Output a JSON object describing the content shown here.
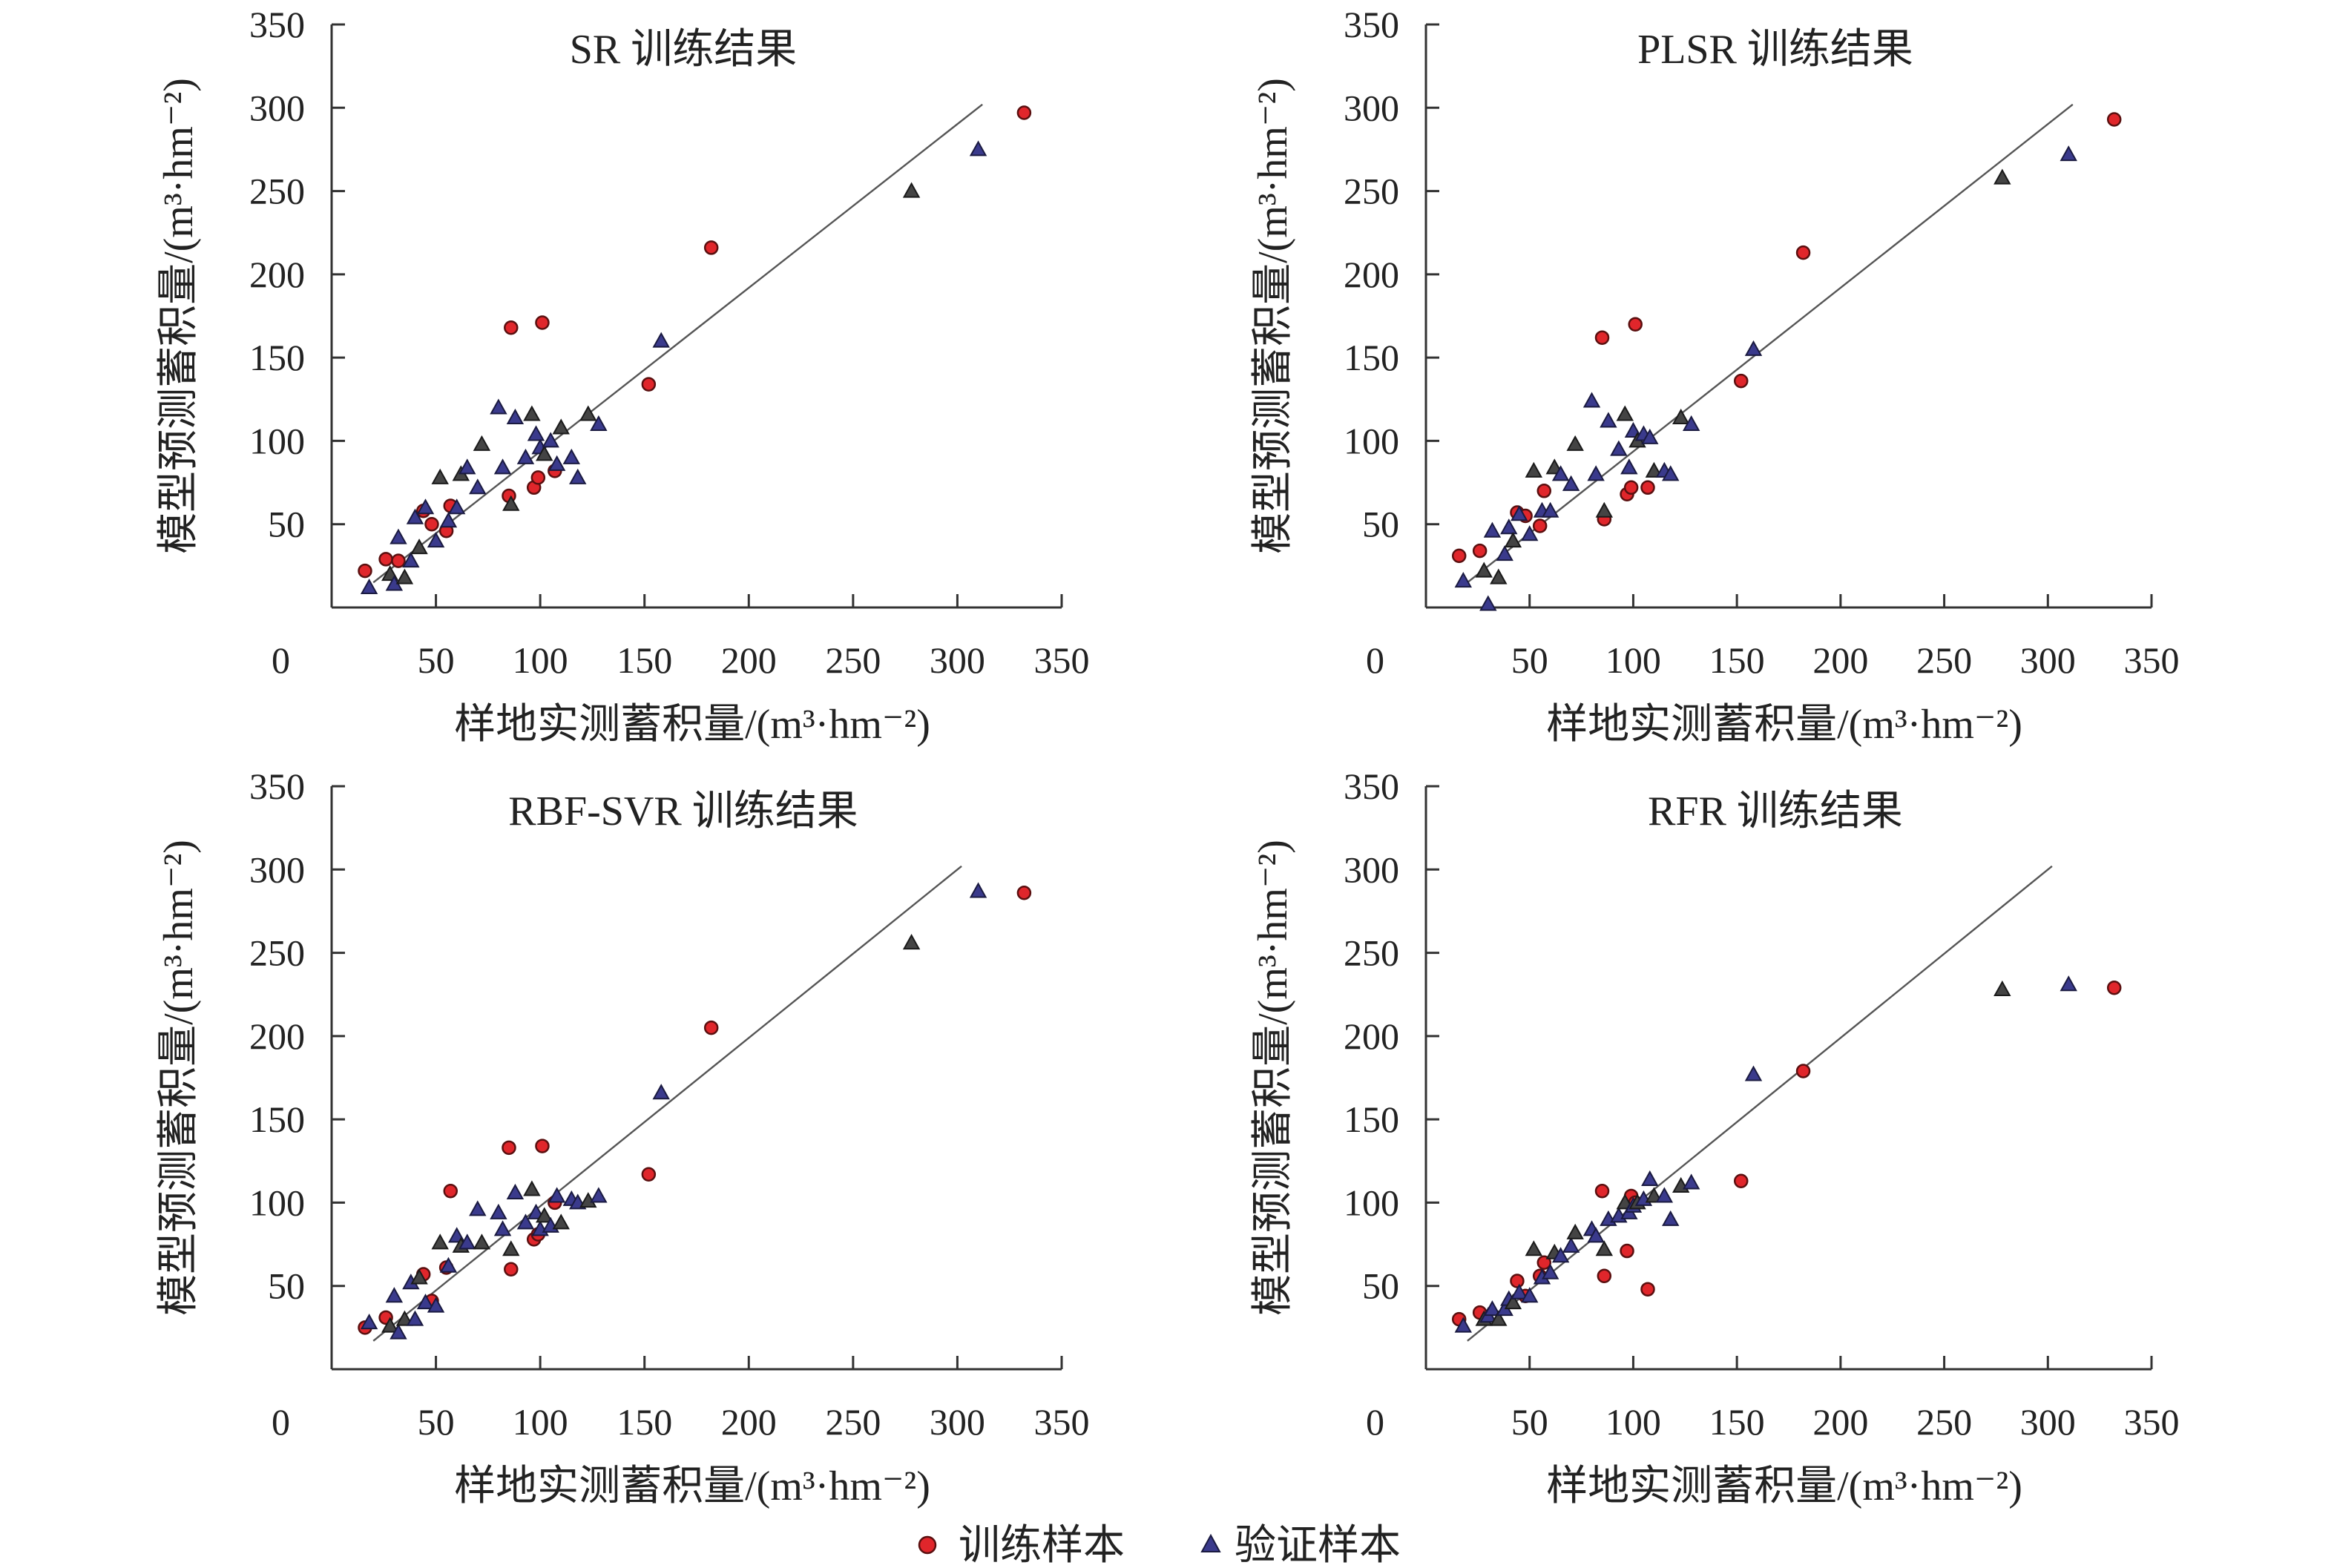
{
  "legend": {
    "train_label": "训练样本",
    "valid_label": "验证样本"
  },
  "colors": {
    "train": "#e0262b",
    "valid": "#3a3a8c"
  },
  "chart_data": [
    {
      "type": "scatter",
      "title": "SR 训练结果",
      "xlabel": "样地实测蓄积量/(m³·hm⁻²)",
      "ylabel": "模型预测蓄积量/(m³·hm⁻²)",
      "xlim": [
        0,
        350
      ],
      "ylim": [
        0,
        350
      ],
      "xticks": [
        "50",
        "100",
        "150",
        "200",
        "250",
        "300",
        "350"
      ],
      "yticks": [
        "50",
        "100",
        "150",
        "200",
        "250",
        "300",
        "350"
      ],
      "zero_label": "0",
      "reference_line": {
        "x": [
          20,
          312
        ],
        "y": [
          15,
          302
        ]
      },
      "series": [
        {
          "name": "训练样本",
          "marker": "circle",
          "x": [
            16,
            26,
            32,
            44,
            48,
            55,
            57,
            85,
            86,
            97,
            99,
            101,
            107,
            152,
            182,
            332
          ],
          "y": [
            22,
            29,
            28,
            58,
            50,
            46,
            61,
            67,
            168,
            72,
            78,
            171,
            82,
            134,
            216,
            297
          ]
        },
        {
          "name": "验证样本",
          "marker": "triangle",
          "x": [
            18,
            28,
            30,
            32,
            35,
            38,
            40,
            42,
            45,
            50,
            52,
            56,
            60,
            62,
            65,
            70,
            72,
            80,
            82,
            86,
            88,
            93,
            96,
            98,
            100,
            102,
            105,
            108,
            110,
            115,
            118,
            123,
            128,
            158,
            278,
            310
          ],
          "y": [
            12,
            20,
            14,
            42,
            18,
            28,
            54,
            36,
            60,
            40,
            78,
            52,
            60,
            80,
            84,
            72,
            98,
            120,
            84,
            62,
            114,
            90,
            116,
            104,
            96,
            92,
            100,
            86,
            108,
            90,
            78,
            116,
            110,
            160,
            250,
            275
          ]
        }
      ]
    },
    {
      "type": "scatter",
      "title": "PLSR 训练结果",
      "xlabel": "样地实测蓄积量/(m³·hm⁻²)",
      "ylabel": "模型预测蓄积量/(m³·hm⁻²)",
      "xlim": [
        0,
        350
      ],
      "ylim": [
        0,
        350
      ],
      "xticks": [
        "50",
        "100",
        "150",
        "200",
        "250",
        "300",
        "350"
      ],
      "yticks": [
        "50",
        "100",
        "150",
        "200",
        "250",
        "300",
        "350"
      ],
      "zero_label": "0",
      "reference_line": {
        "x": [
          20,
          312
        ],
        "y": [
          15,
          302
        ]
      },
      "series": [
        {
          "name": "训练样本",
          "marker": "circle",
          "x": [
            16,
            26,
            44,
            48,
            55,
            57,
            85,
            86,
            97,
            99,
            101,
            107,
            152,
            182,
            332
          ],
          "y": [
            31,
            34,
            57,
            55,
            49,
            70,
            162,
            53,
            68,
            72,
            170,
            72,
            136,
            213,
            293
          ]
        },
        {
          "name": "验证样本",
          "marker": "triangle",
          "x": [
            18,
            28,
            30,
            32,
            35,
            38,
            40,
            42,
            45,
            50,
            52,
            56,
            60,
            62,
            65,
            70,
            72,
            80,
            82,
            86,
            88,
            93,
            96,
            98,
            100,
            102,
            105,
            108,
            110,
            115,
            118,
            123,
            128,
            158,
            278,
            310
          ],
          "y": [
            16,
            22,
            2,
            46,
            18,
            32,
            48,
            40,
            56,
            44,
            82,
            58,
            58,
            84,
            80,
            74,
            98,
            124,
            80,
            58,
            112,
            95,
            116,
            84,
            106,
            100,
            104,
            102,
            82,
            82,
            80,
            114,
            110,
            155,
            258,
            272
          ]
        }
      ]
    },
    {
      "type": "scatter",
      "title": "RBF-SVR 训练结果",
      "xlabel": "样地实测蓄积量/(m³·hm⁻²)",
      "ylabel": "模型预测蓄积量/(m³·hm⁻²)",
      "xlim": [
        0,
        350
      ],
      "ylim": [
        0,
        350
      ],
      "xticks": [
        "50",
        "100",
        "150",
        "200",
        "250",
        "300",
        "350"
      ],
      "yticks": [
        "50",
        "100",
        "150",
        "200",
        "250",
        "300",
        "350"
      ],
      "zero_label": "0",
      "reference_line": {
        "x": [
          20,
          302
        ],
        "y": [
          17,
          302
        ]
      },
      "series": [
        {
          "name": "训练样本",
          "marker": "circle",
          "x": [
            16,
            26,
            44,
            48,
            55,
            57,
            85,
            86,
            97,
            99,
            101,
            107,
            152,
            182,
            332
          ],
          "y": [
            25,
            31,
            57,
            41,
            61,
            107,
            133,
            60,
            78,
            81,
            134,
            100,
            117,
            205,
            286
          ]
        },
        {
          "name": "验证样本",
          "marker": "triangle",
          "x": [
            18,
            28,
            30,
            32,
            35,
            38,
            40,
            42,
            45,
            50,
            52,
            56,
            60,
            62,
            65,
            70,
            72,
            80,
            82,
            86,
            88,
            93,
            96,
            98,
            100,
            102,
            105,
            108,
            110,
            115,
            118,
            123,
            128,
            158,
            278,
            310
          ],
          "y": [
            28,
            26,
            44,
            22,
            30,
            52,
            30,
            55,
            40,
            38,
            76,
            62,
            80,
            74,
            76,
            96,
            76,
            94,
            84,
            72,
            106,
            88,
            108,
            94,
            84,
            92,
            86,
            104,
            88,
            102,
            100,
            101,
            104,
            166,
            256,
            287
          ]
        }
      ]
    },
    {
      "type": "scatter",
      "title": "RFR 训练结果",
      "xlabel": "样地实测蓄积量/(m³·hm⁻²)",
      "ylabel": "模型预测蓄积量/(m³·hm⁻²)",
      "xlim": [
        0,
        350
      ],
      "ylim": [
        0,
        350
      ],
      "xticks": [
        "50",
        "100",
        "150",
        "200",
        "250",
        "300",
        "350"
      ],
      "yticks": [
        "50",
        "100",
        "150",
        "200",
        "250",
        "300",
        "350"
      ],
      "zero_label": "0",
      "reference_line": {
        "x": [
          20,
          302
        ],
        "y": [
          17,
          302
        ]
      },
      "series": [
        {
          "name": "训练样本",
          "marker": "circle",
          "x": [
            16,
            26,
            44,
            48,
            55,
            57,
            85,
            86,
            97,
            99,
            101,
            107,
            152,
            182,
            332
          ],
          "y": [
            30,
            34,
            53,
            44,
            56,
            64,
            107,
            56,
            71,
            104,
            100,
            48,
            113,
            179,
            229
          ]
        },
        {
          "name": "验证样本",
          "marker": "triangle",
          "x": [
            18,
            28,
            30,
            32,
            35,
            38,
            40,
            42,
            45,
            50,
            52,
            56,
            60,
            62,
            65,
            70,
            72,
            80,
            82,
            86,
            88,
            93,
            96,
            98,
            100,
            102,
            105,
            108,
            110,
            115,
            118,
            123,
            128,
            158,
            278,
            310
          ],
          "y": [
            26,
            30,
            32,
            36,
            30,
            36,
            42,
            40,
            46,
            44,
            72,
            55,
            58,
            70,
            68,
            74,
            82,
            84,
            80,
            72,
            90,
            92,
            100,
            94,
            98,
            100,
            102,
            114,
            104,
            104,
            90,
            110,
            112,
            177,
            228,
            231
          ]
        }
      ]
    }
  ]
}
